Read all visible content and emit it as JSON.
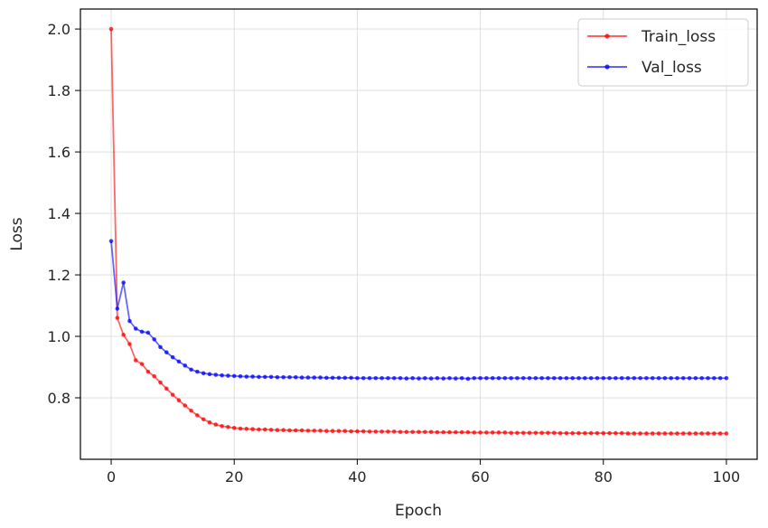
{
  "chart_data": {
    "type": "line",
    "title": "",
    "xlabel": "Epoch",
    "ylabel": "Loss",
    "xlim": [
      -5,
      105
    ],
    "ylim": [
      0.6,
      2.065
    ],
    "xticks": [
      0,
      20,
      40,
      60,
      80,
      100
    ],
    "yticks": [
      0.8,
      1.0,
      1.2,
      1.4,
      1.6,
      1.8,
      2.0
    ],
    "grid": true,
    "legend_position": "top-right",
    "series": [
      {
        "name": "Train_loss",
        "color": "#ff0000",
        "x": [
          0,
          1,
          2,
          3,
          4,
          5,
          6,
          7,
          8,
          9,
          10,
          11,
          12,
          13,
          14,
          15,
          16,
          17,
          18,
          19,
          20,
          21,
          22,
          23,
          24,
          25,
          26,
          27,
          28,
          29,
          30,
          31,
          32,
          33,
          34,
          35,
          36,
          37,
          38,
          39,
          40,
          41,
          42,
          43,
          44,
          45,
          46,
          47,
          48,
          49,
          50,
          51,
          52,
          53,
          54,
          55,
          56,
          57,
          58,
          59,
          60,
          61,
          62,
          63,
          64,
          65,
          66,
          67,
          68,
          69,
          70,
          71,
          72,
          73,
          74,
          75,
          76,
          77,
          78,
          79,
          80,
          81,
          82,
          83,
          84,
          85,
          86,
          87,
          88,
          89,
          90,
          91,
          92,
          93,
          94,
          95,
          96,
          97,
          98,
          99,
          100
        ],
        "y": [
          2.0,
          1.06,
          1.005,
          0.975,
          0.922,
          0.91,
          0.885,
          0.87,
          0.85,
          0.83,
          0.81,
          0.792,
          0.775,
          0.758,
          0.743,
          0.73,
          0.72,
          0.713,
          0.708,
          0.705,
          0.702,
          0.7,
          0.699,
          0.698,
          0.697,
          0.697,
          0.696,
          0.695,
          0.695,
          0.694,
          0.694,
          0.694,
          0.693,
          0.693,
          0.693,
          0.692,
          0.692,
          0.692,
          0.692,
          0.691,
          0.691,
          0.691,
          0.69,
          0.69,
          0.69,
          0.69,
          0.69,
          0.689,
          0.689,
          0.689,
          0.689,
          0.689,
          0.689,
          0.688,
          0.688,
          0.688,
          0.688,
          0.688,
          0.688,
          0.687,
          0.687,
          0.687,
          0.687,
          0.687,
          0.687,
          0.686,
          0.686,
          0.686,
          0.686,
          0.686,
          0.686,
          0.686,
          0.686,
          0.685,
          0.685,
          0.685,
          0.685,
          0.685,
          0.685,
          0.685,
          0.685,
          0.685,
          0.685,
          0.685,
          0.684,
          0.684,
          0.684,
          0.684,
          0.684,
          0.684,
          0.684,
          0.684,
          0.684,
          0.684,
          0.684,
          0.684,
          0.684,
          0.684,
          0.684,
          0.684,
          0.684
        ]
      },
      {
        "name": "Val_loss",
        "color": "#0000ff",
        "x": [
          0,
          1,
          2,
          3,
          4,
          5,
          6,
          7,
          8,
          9,
          10,
          11,
          12,
          13,
          14,
          15,
          16,
          17,
          18,
          19,
          20,
          21,
          22,
          23,
          24,
          25,
          26,
          27,
          28,
          29,
          30,
          31,
          32,
          33,
          34,
          35,
          36,
          37,
          38,
          39,
          40,
          41,
          42,
          43,
          44,
          45,
          46,
          47,
          48,
          49,
          50,
          51,
          52,
          53,
          54,
          55,
          56,
          57,
          58,
          59,
          60,
          61,
          62,
          63,
          64,
          65,
          66,
          67,
          68,
          69,
          70,
          71,
          72,
          73,
          74,
          75,
          76,
          77,
          78,
          79,
          80,
          81,
          82,
          83,
          84,
          85,
          86,
          87,
          88,
          89,
          90,
          91,
          92,
          93,
          94,
          95,
          96,
          97,
          98,
          99,
          100
        ],
        "y": [
          1.31,
          1.09,
          1.175,
          1.05,
          1.025,
          1.015,
          1.012,
          0.99,
          0.965,
          0.948,
          0.932,
          0.918,
          0.905,
          0.892,
          0.885,
          0.88,
          0.877,
          0.875,
          0.873,
          0.872,
          0.871,
          0.87,
          0.869,
          0.869,
          0.868,
          0.868,
          0.868,
          0.867,
          0.867,
          0.867,
          0.867,
          0.866,
          0.866,
          0.866,
          0.866,
          0.865,
          0.865,
          0.865,
          0.865,
          0.865,
          0.864,
          0.864,
          0.864,
          0.864,
          0.864,
          0.864,
          0.864,
          0.864,
          0.863,
          0.864,
          0.863,
          0.864,
          0.863,
          0.864,
          0.863,
          0.864,
          0.863,
          0.864,
          0.862,
          0.864,
          0.864,
          0.864,
          0.864,
          0.864,
          0.864,
          0.864,
          0.864,
          0.864,
          0.864,
          0.864,
          0.864,
          0.864,
          0.864,
          0.864,
          0.864,
          0.864,
          0.864,
          0.864,
          0.864,
          0.864,
          0.864,
          0.864,
          0.864,
          0.864,
          0.864,
          0.864,
          0.864,
          0.864,
          0.864,
          0.864,
          0.864,
          0.864,
          0.864,
          0.864,
          0.864,
          0.864,
          0.864,
          0.864,
          0.864,
          0.864,
          0.864
        ]
      }
    ]
  }
}
